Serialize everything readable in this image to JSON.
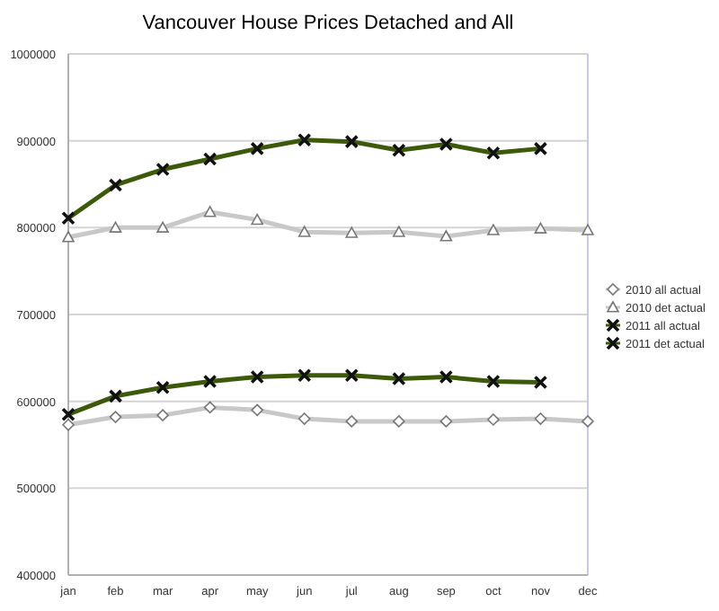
{
  "chart_data": {
    "type": "line",
    "title": "Vancouver House Prices Detached and All",
    "categories": [
      "jan",
      "feb",
      "mar",
      "apr",
      "may",
      "jun",
      "jul",
      "aug",
      "sep",
      "oct",
      "nov",
      "dec"
    ],
    "series": [
      {
        "name": "2010 all actual",
        "color": "#c8c8c8",
        "marker": "diamond",
        "values": [
          573000,
          582000,
          584000,
          593000,
          590000,
          580000,
          577000,
          577000,
          577000,
          579000,
          580000,
          577000
        ]
      },
      {
        "name": "2010 det actual",
        "color": "#c8c8c8",
        "marker": "triangle",
        "values": [
          789000,
          800000,
          800000,
          818000,
          809000,
          795000,
          794000,
          795000,
          790000,
          797000,
          799000,
          797000
        ]
      },
      {
        "name": "2011 all actual",
        "color": "#3d5a0a",
        "marker": "cross",
        "values": [
          585000,
          606000,
          616000,
          623000,
          628000,
          630000,
          630000,
          626000,
          628000,
          623000,
          622000,
          null
        ]
      },
      {
        "name": "2011 det actual",
        "color": "#3d5a0a",
        "marker": "cross",
        "values": [
          811000,
          849000,
          867000,
          879000,
          891000,
          901000,
          899000,
          889000,
          896000,
          886000,
          891000,
          null
        ]
      }
    ],
    "ylim": [
      400000,
      1000000
    ],
    "yticks": [
      400000,
      500000,
      600000,
      700000,
      800000,
      900000,
      1000000
    ],
    "grid": "y",
    "legend": "right"
  }
}
